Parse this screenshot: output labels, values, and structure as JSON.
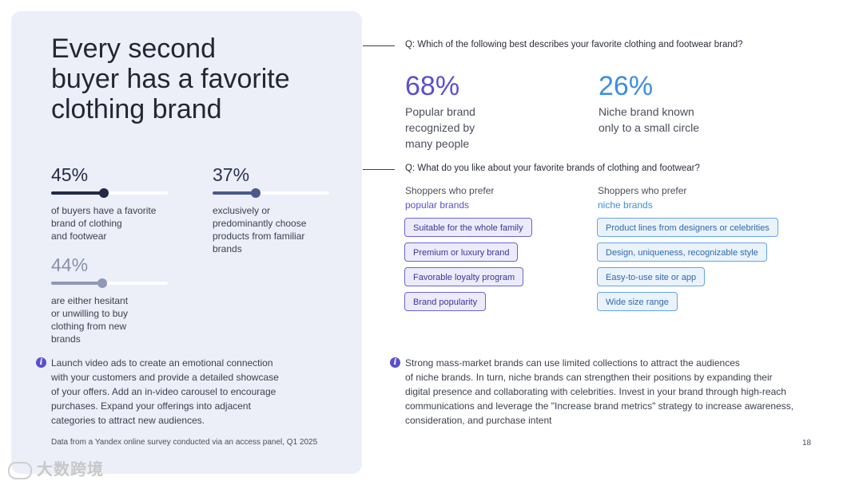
{
  "left": {
    "title": "Every second\nbuyer has a favorite\nclothing brand",
    "stats": [
      {
        "value": "45%",
        "fraction": 0.45,
        "desc": "of buyers have a favorite\nbrand of clothing\nand footwear"
      },
      {
        "value": "37%",
        "fraction": 0.37,
        "desc": "exclusively or\npredominantly choose\nproducts from familiar\nbrands"
      },
      {
        "value": "44%",
        "fraction": 0.44,
        "desc": "are either hesitant\nor unwilling to buy\nclothing from new\nbrands"
      }
    ],
    "tip": "Launch video ads to create an emotional connection\nwith your customers and provide a detailed showcase\nof your offers. Add an in-video carousel to encourage\npurchases. Expand your offerings into adjacent\ncategories to attract new audiences.",
    "footnote": "Data from a Yandex online survey conducted via an access panel, Q1 2025"
  },
  "q1": {
    "question": "Q: Which of the following best describes your favorite clothing and footwear brand?",
    "answers": [
      {
        "value": "68%",
        "desc": "Popular brand\nrecognized by\nmany people",
        "color": "#5a4fd0"
      },
      {
        "value": "26%",
        "desc": "Niche brand known\nonly to a small circle",
        "color": "#3d8ee0"
      }
    ]
  },
  "q2": {
    "question": "Q: What do you like about your favorite brands of clothing and footwear?",
    "popular": {
      "head": "Shoppers who prefer",
      "accent": "popular brands",
      "accent_color": "#5a4fd0",
      "items": [
        "Suitable for the whole family",
        "Premium or luxury brand",
        "Favorable loyalty program",
        "Brand popularity"
      ]
    },
    "niche": {
      "head": "Shoppers who prefer",
      "accent": "niche brands",
      "accent_color": "#3d8ee0",
      "items": [
        "Product lines from designers or celebrities",
        "Design, uniqueness, recognizable style",
        "Easy-to-use site or app",
        "Wide size range"
      ]
    }
  },
  "right_tip": "Strong mass-market brands can use limited collections to attract the audiences\nof niche brands. In turn, niche brands can strengthen their positions by expanding their\ndigital presence and collaborating with celebrities. Invest in your brand through high-reach\ncommunications and leverage the \"Increase brand metrics\" strategy to increase awareness,\nconsideration, and purchase intent",
  "info_icon_glyph": "i",
  "page_number": "18",
  "watermark": "大数跨境"
}
